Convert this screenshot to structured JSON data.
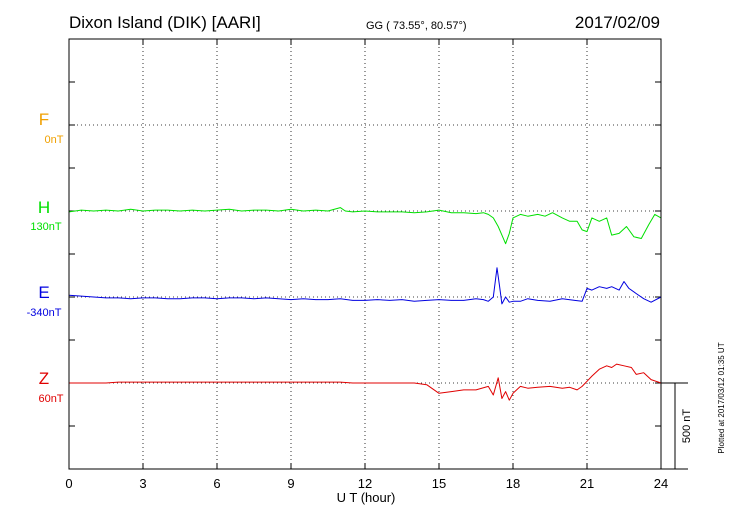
{
  "header": {
    "station": "Dixon Island (DIK)  [AARI]",
    "coords": "GG ( 73.55°,  80.57°)",
    "date": "2017/02/09"
  },
  "plotted_note": "Plotted at 2017/03/12 01:35 UT",
  "scale_bar_label": "500 nT",
  "chart_data": {
    "type": "line",
    "title": "Dixon Island (DIK)  [AARI]",
    "xlabel": "U T (hour)",
    "xlim": [
      0,
      24
    ],
    "x_ticks": [
      0,
      3,
      6,
      9,
      12,
      15,
      18,
      21,
      24
    ],
    "grid": true,
    "units": "nT",
    "scale_bar_nT": 500,
    "series": [
      {
        "name": "F",
        "base_label": "0nT",
        "color": "#f0a000",
        "x": [],
        "y": []
      },
      {
        "name": "H",
        "base_label": "130nT",
        "color": "#00e000",
        "x": [
          0,
          0.5,
          1,
          1.5,
          2,
          2.5,
          3,
          3.5,
          4,
          4.5,
          5,
          5.5,
          6,
          6.5,
          7,
          7.5,
          8,
          8.5,
          9,
          9.5,
          10,
          10.5,
          11,
          11.2,
          11.5,
          12,
          12.5,
          13,
          13.5,
          14,
          14.5,
          15,
          15.5,
          16,
          16.5,
          16.8,
          17,
          17.2,
          17.4,
          17.55,
          17.7,
          17.85,
          18,
          18.3,
          18.6,
          19,
          19.3,
          19.6,
          20,
          20.3,
          20.6,
          20.8,
          21,
          21.2,
          21.5,
          21.8,
          22,
          22.3,
          22.6,
          22.9,
          23.2,
          23.5,
          23.75,
          24
        ],
        "y": [
          -5,
          5,
          0,
          5,
          0,
          10,
          0,
          5,
          5,
          0,
          5,
          0,
          5,
          10,
          0,
          5,
          5,
          0,
          10,
          0,
          5,
          0,
          20,
          0,
          -5,
          0,
          -5,
          -5,
          -5,
          -10,
          -5,
          5,
          -10,
          -10,
          -15,
          -10,
          -20,
          -40,
          -90,
          -140,
          -190,
          -130,
          -40,
          -20,
          -30,
          -20,
          -30,
          -10,
          -40,
          -60,
          -60,
          -110,
          -120,
          -40,
          -60,
          -40,
          -140,
          -130,
          -90,
          -150,
          -160,
          -80,
          -20,
          -40
        ]
      },
      {
        "name": "E",
        "base_label": "-340nT",
        "color": "#0000e0",
        "x": [
          0,
          0.5,
          1,
          1.5,
          2,
          2.5,
          3,
          3.5,
          4,
          4.5,
          5,
          5.5,
          6,
          6.5,
          7,
          7.5,
          8,
          8.5,
          9,
          9.5,
          10,
          10.5,
          11,
          11.5,
          12,
          12.5,
          13,
          13.5,
          14,
          14.5,
          15,
          15.5,
          16,
          16.5,
          16.8,
          17,
          17.2,
          17.35,
          17.45,
          17.55,
          17.7,
          17.85,
          18,
          18.3,
          18.6,
          19,
          19.5,
          20,
          20.5,
          20.8,
          21,
          21.2,
          21.5,
          21.8,
          22,
          22.3,
          22.5,
          22.7,
          23,
          23.3,
          23.6,
          24
        ],
        "y": [
          10,
          5,
          0,
          -5,
          -5,
          -10,
          -5,
          -5,
          -10,
          -10,
          -5,
          -5,
          -10,
          -5,
          -5,
          -10,
          -5,
          -10,
          -15,
          -10,
          -15,
          -15,
          -10,
          -20,
          -20,
          -15,
          -20,
          -15,
          -25,
          -20,
          -15,
          -20,
          -20,
          -10,
          -15,
          -25,
          0,
          170,
          70,
          -40,
          0,
          -30,
          -25,
          -25,
          -10,
          -20,
          -25,
          -10,
          -20,
          -25,
          50,
          40,
          60,
          50,
          60,
          40,
          90,
          50,
          20,
          -10,
          -30,
          0
        ]
      },
      {
        "name": "Z",
        "base_label": "60nT",
        "color": "#e00000",
        "x": [
          0,
          0.5,
          1,
          1.5,
          2,
          2.5,
          3,
          3.5,
          4,
          4.5,
          5,
          5.5,
          6,
          6.5,
          7,
          7.5,
          8,
          8.5,
          9,
          9.5,
          10,
          10.5,
          11,
          11.5,
          12,
          12.5,
          13,
          13.5,
          14,
          14.5,
          15,
          15.5,
          16,
          16.5,
          17,
          17.2,
          17.4,
          17.55,
          17.7,
          17.85,
          18,
          18.3,
          18.6,
          19,
          19.5,
          20,
          20.3,
          20.6,
          20.8,
          21,
          21.2,
          21.5,
          21.8,
          22,
          22.2,
          22.5,
          22.8,
          23,
          23.3,
          23.6,
          24
        ],
        "y": [
          0,
          0,
          0,
          0,
          5,
          5,
          5,
          5,
          5,
          5,
          5,
          5,
          5,
          5,
          5,
          5,
          5,
          5,
          5,
          5,
          5,
          5,
          5,
          0,
          0,
          0,
          0,
          0,
          0,
          -10,
          -60,
          -50,
          -40,
          -40,
          -20,
          -70,
          30,
          -90,
          -50,
          -100,
          -60,
          -20,
          -30,
          -25,
          -20,
          -30,
          -25,
          -40,
          -20,
          10,
          40,
          80,
          100,
          90,
          110,
          100,
          90,
          50,
          60,
          20,
          0
        ]
      }
    ]
  }
}
